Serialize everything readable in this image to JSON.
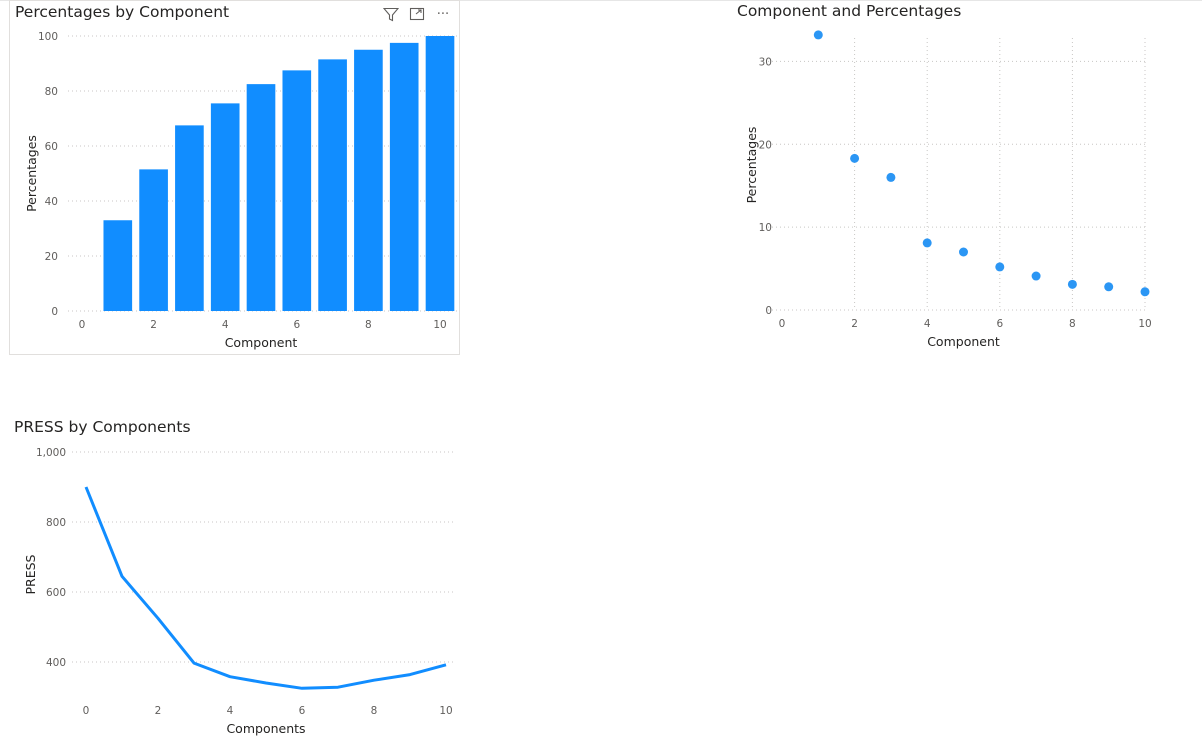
{
  "charts": {
    "bar": {
      "title": "Percentages by Component",
      "header_icons": [
        "filter-icon",
        "focus-mode-icon",
        "more-options-icon"
      ],
      "header_glyphs": {
        "more": "···"
      }
    },
    "scatter": {
      "title": "Component and Percentages"
    },
    "line": {
      "title": "PRESS by Components"
    }
  },
  "colors": {
    "series": "#118dff",
    "scatter_point": "#2b96f4",
    "grid": "#c8c6c4",
    "text": "#252423",
    "tick": "#605e5c"
  },
  "chart_data": [
    {
      "type": "bar",
      "title": "Percentages by Component",
      "xlabel": "Component",
      "ylabel": "Percentages",
      "x": [
        1,
        2,
        3,
        4,
        5,
        6,
        7,
        8,
        9,
        10
      ],
      "values": [
        33,
        51.5,
        67.5,
        75.5,
        82.5,
        87.5,
        91.5,
        95,
        97.5,
        100
      ],
      "xlim": [
        0,
        10
      ],
      "ylim": [
        0,
        100
      ],
      "xticks": [
        0,
        2,
        4,
        6,
        8,
        10
      ],
      "yticks": [
        0,
        20,
        40,
        60,
        80,
        100
      ],
      "grid": true
    },
    {
      "type": "scatter",
      "title": "Component and Percentages",
      "xlabel": "Component",
      "ylabel": "Percentages",
      "x": [
        1,
        2,
        3,
        4,
        5,
        6,
        7,
        8,
        9,
        10
      ],
      "values": [
        33.2,
        18.3,
        16,
        8.1,
        7,
        5.2,
        4.1,
        3.1,
        2.8,
        2.2
      ],
      "xlim": [
        0,
        10
      ],
      "ylim": [
        0,
        35
      ],
      "xticks": [
        0,
        2,
        4,
        6,
        8,
        10
      ],
      "yticks": [
        0,
        10,
        20,
        30
      ],
      "grid": true
    },
    {
      "type": "line",
      "title": "PRESS by Components",
      "xlabel": "Components",
      "ylabel": "PRESS",
      "x": [
        0,
        1,
        2,
        3,
        4,
        5,
        6,
        7,
        8,
        9,
        10
      ],
      "values": [
        900,
        645,
        525,
        397,
        358,
        340,
        325,
        328,
        348,
        364,
        392
      ],
      "xlim": [
        0,
        10
      ],
      "ylim": [
        300,
        1000
      ],
      "xticks": [
        0,
        2,
        4,
        6,
        8,
        10
      ],
      "yticks": [
        400,
        600,
        800,
        1000
      ],
      "ytick_labels": [
        "400",
        "600",
        "800",
        "1,000"
      ],
      "grid": true
    }
  ]
}
